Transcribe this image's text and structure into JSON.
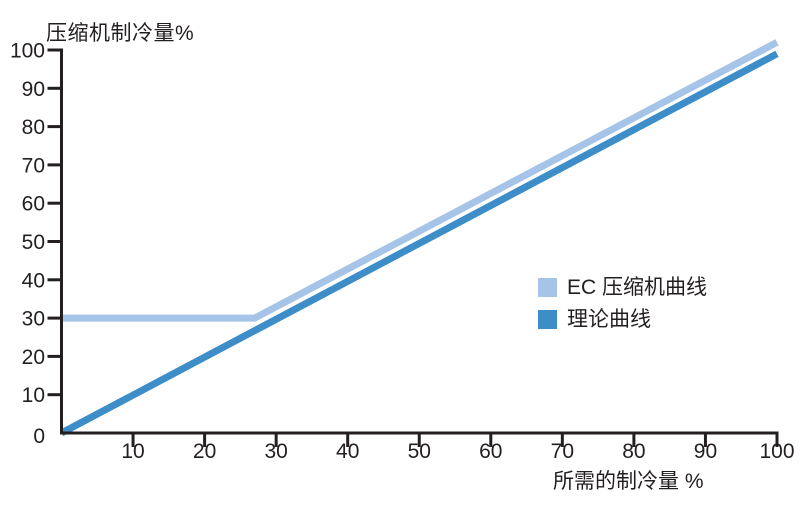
{
  "chart_data": {
    "type": "line",
    "title": "",
    "ylabel": "压缩机制冷量%",
    "xlabel": "所需的制冷量 %",
    "xlim": [
      0,
      100
    ],
    "ylim": [
      0,
      100
    ],
    "x_ticks": [
      10,
      20,
      30,
      40,
      50,
      60,
      70,
      80,
      90,
      100
    ],
    "y_ticks": [
      10,
      20,
      30,
      40,
      50,
      60,
      70,
      80,
      90,
      100
    ],
    "origin_label": "0",
    "grid": false,
    "legend_position": "middle-right",
    "axis_color": "#231f20",
    "text_color": "#231f20",
    "background_color": "#ffffff",
    "series": [
      {
        "name": "EC 压缩机曲线",
        "color": "#a5c4e7",
        "points": [
          [
            0,
            30
          ],
          [
            27,
            30
          ],
          [
            100,
            102
          ]
        ]
      },
      {
        "name": "理论曲线",
        "color": "#3d8dc9",
        "points": [
          [
            0,
            0
          ],
          [
            100,
            99
          ]
        ]
      }
    ]
  }
}
